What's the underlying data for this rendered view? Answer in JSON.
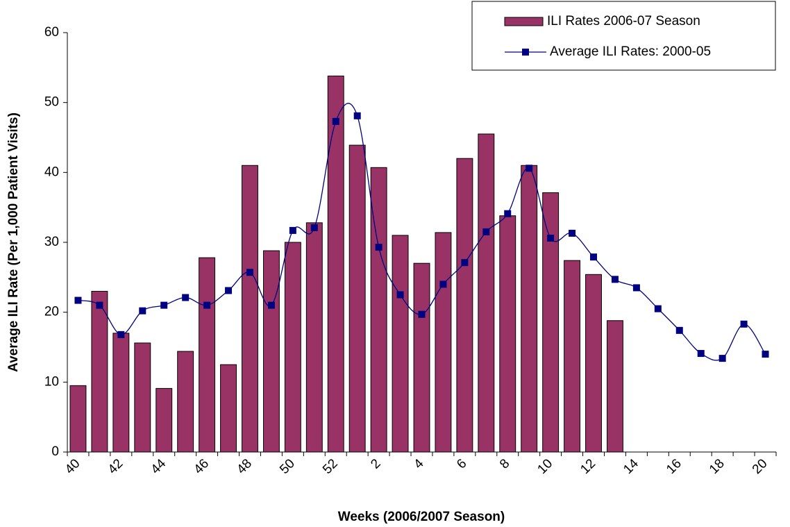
{
  "chart_data": {
    "type": "bar-line",
    "x_label": "Weeks (2006/2007 Season)",
    "y_label": "Average ILI Rate (Per 1,000 Patient Visits)",
    "categories": [
      "40",
      null,
      "42",
      null,
      "44",
      null,
      "46",
      null,
      "48",
      null,
      "50",
      null,
      "52",
      null,
      "2",
      null,
      "4",
      null,
      "6",
      null,
      "8",
      null,
      "10",
      null,
      "12",
      null,
      "14",
      null,
      "16",
      null,
      "18",
      null,
      "20"
    ],
    "series": [
      {
        "name": "ILI Rates 2006-07 Season",
        "type": "bar",
        "color": "#993366",
        "values": [
          9.5,
          23,
          17,
          15.6,
          9.1,
          14.4,
          27.8,
          12.5,
          41,
          28.8,
          30,
          32.8,
          53.8,
          43.9,
          40.7,
          31,
          27,
          31.4,
          42,
          45.5,
          33.8,
          41,
          37.1,
          27.4,
          25.4,
          18.8,
          null,
          null,
          null,
          null,
          null,
          null,
          null
        ]
      },
      {
        "name": "Average ILI Rates: 2000-05",
        "type": "line",
        "color": "#000080",
        "values": [
          21.7,
          21,
          16.8,
          20.2,
          21,
          22.1,
          21,
          23.1,
          25.7,
          21,
          31.7,
          32.1,
          47.3,
          48.1,
          29.3,
          22.5,
          19.7,
          24,
          27.1,
          31.5,
          34.1,
          40.6,
          30.6,
          31.3,
          27.9,
          24.7,
          23.5,
          20.5,
          17.4,
          14.1,
          13.4,
          18.3,
          14
        ]
      }
    ],
    "ylim": [
      0,
      60
    ],
    "yticks": [
      0,
      10,
      20,
      30,
      40,
      50,
      60
    ],
    "grid": false,
    "legend": "upper right"
  }
}
